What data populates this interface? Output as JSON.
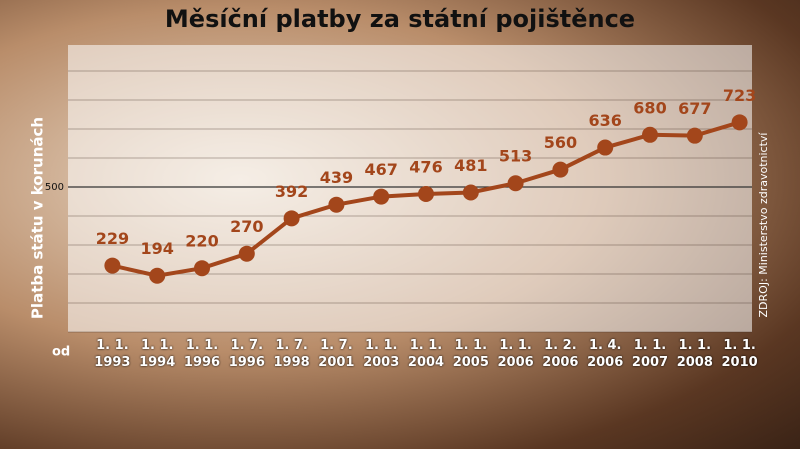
{
  "chart_data": {
    "type": "line",
    "title": "Měsíční platby za státní pojištěnce",
    "y_label": "Platba státu v korunách",
    "x_prefix": "od",
    "source": "ZDROJ: Ministerstvo zdravotnictví",
    "categories": [
      "1. 1. 1993",
      "1. 1. 1994",
      "1. 1. 1996",
      "1. 7. 1996",
      "1. 7. 1998",
      "1. 7. 2001",
      "1. 1. 2003",
      "1. 1. 2004",
      "1. 1. 2005",
      "1. 1. 2006",
      "1. 2. 2006",
      "1. 4. 2006",
      "1. 1. 2007",
      "1. 1. 2008",
      "1. 1. 2010"
    ],
    "values": [
      229,
      194,
      220,
      270,
      392,
      439,
      467,
      476,
      481,
      513,
      560,
      636,
      680,
      677,
      723
    ],
    "color": "#a3461b",
    "ylim": [
      0,
      1000
    ],
    "yticks": [
      500
    ],
    "grid": true
  }
}
